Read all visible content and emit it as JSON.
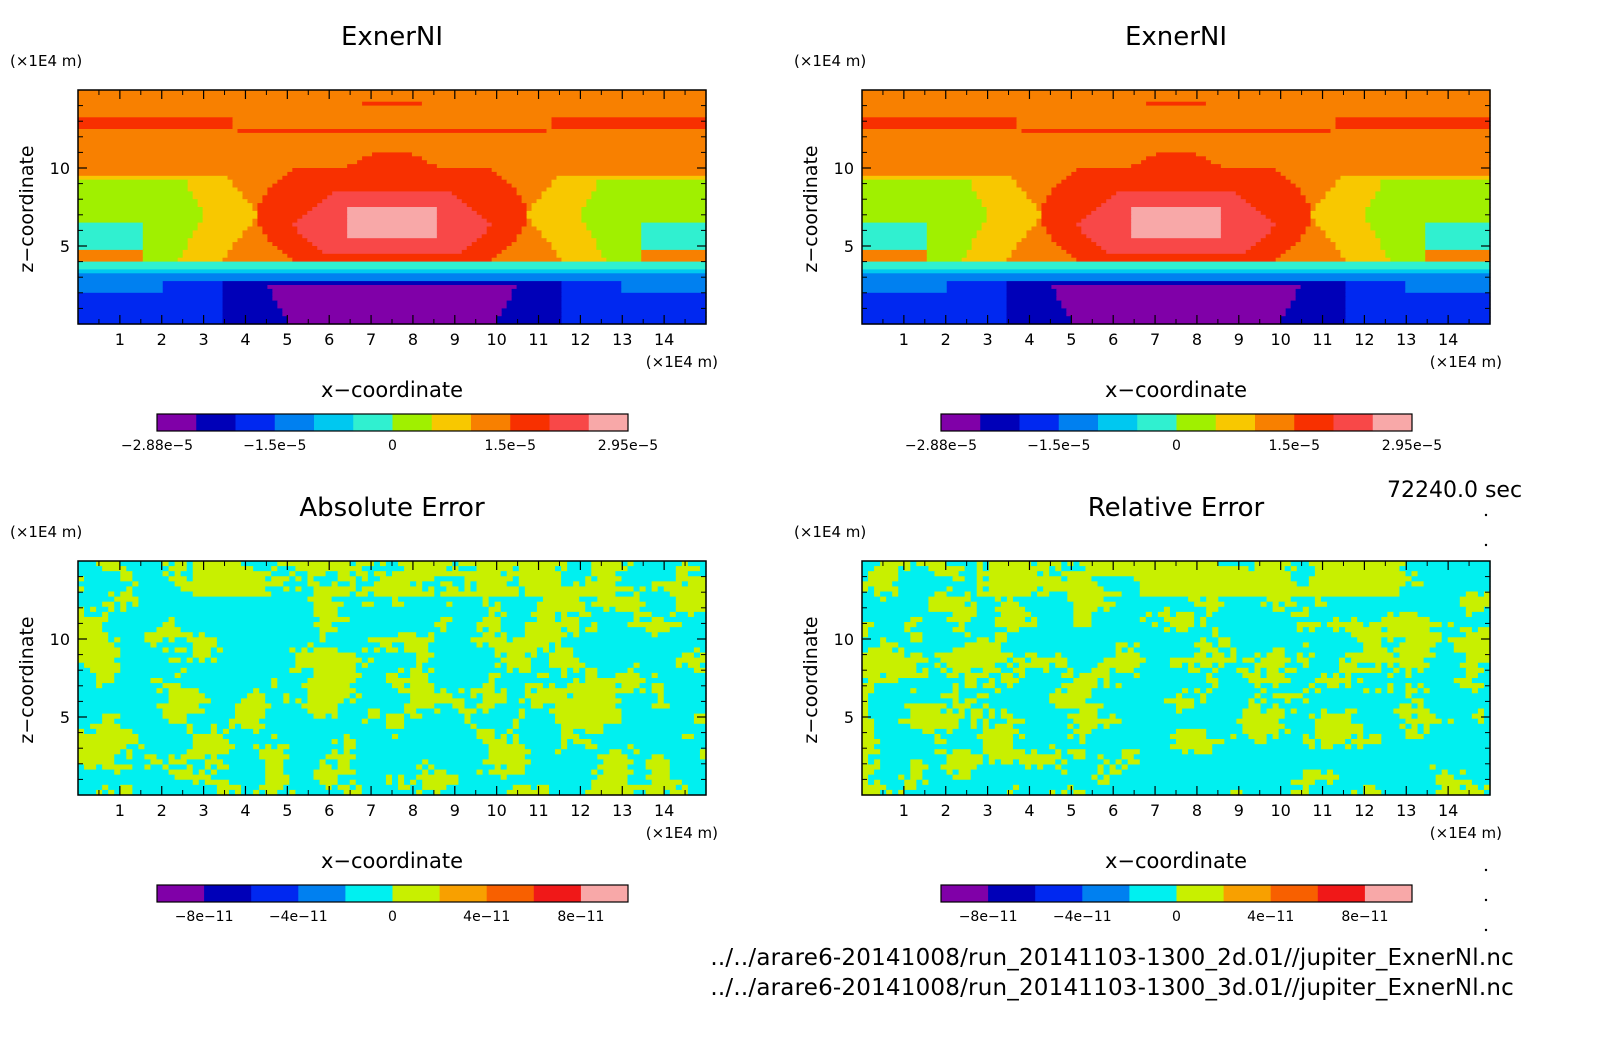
{
  "panels": [
    {
      "title": "ExnerNI",
      "field": "exner",
      "x_unit": "(×1E4 m)",
      "z_unit": "(×1E4 m)",
      "xlabel": "x−coordinate",
      "ylabel": "z−coordinate",
      "x_ticks": [
        "1",
        "2",
        "3",
        "4",
        "5",
        "6",
        "7",
        "8",
        "9",
        "10",
        "11",
        "12",
        "13",
        "14"
      ],
      "z_ticks": [
        "5",
        "10"
      ],
      "colorbar": {
        "colors": [
          "#8000a8",
          "#0000b8",
          "#0028f0",
          "#0080f0",
          "#00c8f0",
          "#30f0d0",
          "#a0f000",
          "#f8c800",
          "#f88000",
          "#f83000",
          "#f84848",
          "#f8a8a8"
        ],
        "tick_labels": [
          "−2.88e−5",
          "−1.5e−5",
          "0",
          "1.5e−5",
          "2.95e−5"
        ]
      }
    },
    {
      "title": "ExnerNI",
      "field": "exner",
      "x_unit": "(×1E4 m)",
      "z_unit": "(×1E4 m)",
      "xlabel": "x−coordinate",
      "ylabel": "z−coordinate",
      "x_ticks": [
        "1",
        "2",
        "3",
        "4",
        "5",
        "6",
        "7",
        "8",
        "9",
        "10",
        "11",
        "12",
        "13",
        "14"
      ],
      "z_ticks": [
        "5",
        "10"
      ],
      "colorbar": {
        "colors": [
          "#8000a8",
          "#0000b8",
          "#0028f0",
          "#0080f0",
          "#00c8f0",
          "#30f0d0",
          "#a0f000",
          "#f8c800",
          "#f88000",
          "#f83000",
          "#f84848",
          "#f8a8a8"
        ],
        "tick_labels": [
          "−2.88e−5",
          "−1.5e−5",
          "0",
          "1.5e−5",
          "2.95e−5"
        ]
      }
    },
    {
      "title": "Absolute Error",
      "field": "error",
      "x_unit": "(×1E4 m)",
      "z_unit": "(×1E4 m)",
      "xlabel": "x−coordinate",
      "ylabel": "z−coordinate",
      "x_ticks": [
        "1",
        "2",
        "3",
        "4",
        "5",
        "6",
        "7",
        "8",
        "9",
        "10",
        "11",
        "12",
        "13",
        "14"
      ],
      "z_ticks": [
        "5",
        "10"
      ],
      "colorbar": {
        "colors": [
          "#8000a8",
          "#0000b8",
          "#0028f0",
          "#0080f0",
          "#00f0f0",
          "#c8f000",
          "#f8a000",
          "#f86000",
          "#f01818",
          "#f8a8a8"
        ],
        "tick_labels": [
          "−8e−11",
          "−4e−11",
          "0",
          "4e−11",
          "8e−11"
        ]
      }
    },
    {
      "title": "Relative Error",
      "field": "error",
      "x_unit": "(×1E4 m)",
      "z_unit": "(×1E4 m)",
      "xlabel": "x−coordinate",
      "ylabel": "z−coordinate",
      "x_ticks": [
        "1",
        "2",
        "3",
        "4",
        "5",
        "6",
        "7",
        "8",
        "9",
        "10",
        "11",
        "12",
        "13",
        "14"
      ],
      "z_ticks": [
        "5",
        "10"
      ],
      "colorbar": {
        "colors": [
          "#8000a8",
          "#0000b8",
          "#0028f0",
          "#0080f0",
          "#00f0f0",
          "#c8f000",
          "#f8a000",
          "#f86000",
          "#f01818",
          "#f8a8a8"
        ],
        "tick_labels": [
          "−8e−11",
          "−4e−11",
          "0",
          "4e−11",
          "8e−11"
        ]
      }
    }
  ],
  "time_label": "72240.0 sec",
  "files": [
    "../../arare6-20141008/run_20141103-1300_2d.01//jupiter_ExnerNl.nc",
    "../../arare6-20141008/run_20141103-1300_3d.01//jupiter_ExnerNl.nc"
  ],
  "chart_data": [
    {
      "type": "heatmap",
      "title": "ExnerNI",
      "xlabel": "x−coordinate",
      "ylabel": "z−coordinate",
      "x_unit": "(×1E4 m)",
      "z_unit": "(×1E4 m)",
      "xlim": [
        0,
        15
      ],
      "ylim": [
        0,
        15
      ],
      "colorbar_range": [
        -2.88e-05,
        2.95e-05
      ],
      "colorbar_ticks": [
        -2.88e-05,
        -1.5e-05,
        0,
        1.5e-05,
        2.95e-05
      ],
      "levels": 12,
      "grid": false
    },
    {
      "type": "heatmap",
      "title": "ExnerNI",
      "xlabel": "x−coordinate",
      "ylabel": "z−coordinate",
      "x_unit": "(×1E4 m)",
      "z_unit": "(×1E4 m)",
      "xlim": [
        0,
        15
      ],
      "ylim": [
        0,
        15
      ],
      "colorbar_range": [
        -2.88e-05,
        2.95e-05
      ],
      "colorbar_ticks": [
        -2.88e-05,
        -1.5e-05,
        0,
        1.5e-05,
        2.95e-05
      ],
      "levels": 12,
      "grid": false
    },
    {
      "type": "heatmap",
      "title": "Absolute Error",
      "xlabel": "x−coordinate",
      "ylabel": "z−coordinate",
      "x_unit": "(×1E4 m)",
      "z_unit": "(×1E4 m)",
      "xlim": [
        0,
        15
      ],
      "ylim": [
        0,
        15
      ],
      "colorbar_ticks": [
        -8e-11,
        -4e-11,
        0,
        4e-11,
        8e-11
      ],
      "levels": 10,
      "grid": false
    },
    {
      "type": "heatmap",
      "title": "Relative Error",
      "xlabel": "x−coordinate",
      "ylabel": "z−coordinate",
      "x_unit": "(×1E4 m)",
      "z_unit": "(×1E4 m)",
      "xlim": [
        0,
        15
      ],
      "ylim": [
        0,
        15
      ],
      "colorbar_ticks": [
        -8e-11,
        -4e-11,
        0,
        4e-11,
        8e-11
      ],
      "levels": 10,
      "grid": false
    }
  ]
}
